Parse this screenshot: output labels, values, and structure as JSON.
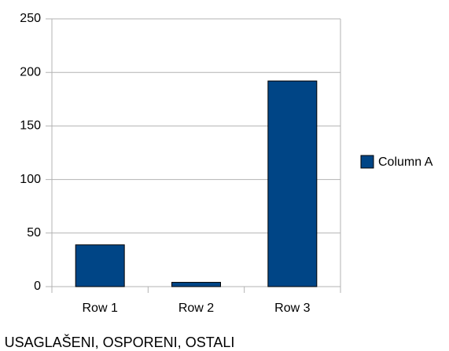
{
  "chart_data": {
    "type": "bar",
    "x_label": "USAGLAŠENI, OSPORENI, OSTALI",
    "categories": [
      "Row 1",
      "Row 2",
      "Row 3"
    ],
    "series": [
      {
        "name": "Column A",
        "color": "#004586",
        "values": [
          39,
          4,
          192
        ]
      }
    ],
    "ylim": [
      0,
      250
    ],
    "yticks": [
      0,
      50,
      100,
      150,
      200,
      250
    ],
    "grid": true,
    "legend": "right"
  }
}
